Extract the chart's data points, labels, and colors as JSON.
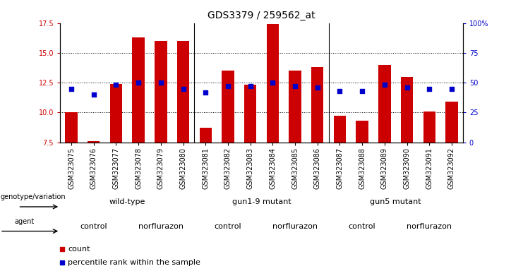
{
  "title": "GDS3379 / 259562_at",
  "samples": [
    "GSM323075",
    "GSM323076",
    "GSM323077",
    "GSM323078",
    "GSM323079",
    "GSM323080",
    "GSM323081",
    "GSM323082",
    "GSM323083",
    "GSM323084",
    "GSM323085",
    "GSM323086",
    "GSM323087",
    "GSM323088",
    "GSM323089",
    "GSM323090",
    "GSM323091",
    "GSM323092"
  ],
  "counts": [
    10.0,
    7.6,
    12.4,
    16.3,
    16.0,
    16.0,
    8.7,
    13.5,
    12.3,
    17.4,
    13.5,
    13.8,
    9.7,
    9.3,
    14.0,
    13.0,
    10.1,
    10.9
  ],
  "percentile_ranks": [
    45,
    40,
    48,
    50,
    50,
    45,
    42,
    47,
    47,
    50,
    47,
    46,
    43,
    43,
    48,
    46,
    45,
    45
  ],
  "ylim_left": [
    7.5,
    17.5
  ],
  "ylim_right": [
    0,
    100
  ],
  "yticks_left": [
    7.5,
    10.0,
    12.5,
    15.0,
    17.5
  ],
  "yticks_right": [
    0,
    25,
    50,
    75,
    100
  ],
  "bar_color": "#cc0000",
  "dot_color": "#0000cc",
  "genotype_groups": [
    {
      "label": "wild-type",
      "start": 0,
      "end": 5,
      "color": "#ccffcc"
    },
    {
      "label": "gun1-9 mutant",
      "start": 6,
      "end": 11,
      "color": "#ccffcc"
    },
    {
      "label": "gun5 mutant",
      "start": 12,
      "end": 17,
      "color": "#44bb44"
    }
  ],
  "agent_groups": [
    {
      "label": "control",
      "start": 0,
      "end": 2,
      "color": "#ffffff"
    },
    {
      "label": "norflurazon",
      "start": 3,
      "end": 5,
      "color": "#dd66dd"
    },
    {
      "label": "control",
      "start": 6,
      "end": 8,
      "color": "#ffffff"
    },
    {
      "label": "norflurazon",
      "start": 9,
      "end": 11,
      "color": "#dd66dd"
    },
    {
      "label": "control",
      "start": 12,
      "end": 14,
      "color": "#ffffff"
    },
    {
      "label": "norflurazon",
      "start": 15,
      "end": 17,
      "color": "#dd66dd"
    }
  ],
  "legend_count_color": "#cc0000",
  "legend_dot_color": "#0000cc",
  "bg_color": "#ffffff",
  "title_fontsize": 10,
  "tick_fontsize": 7,
  "label_fontsize": 8,
  "bar_width": 0.55
}
